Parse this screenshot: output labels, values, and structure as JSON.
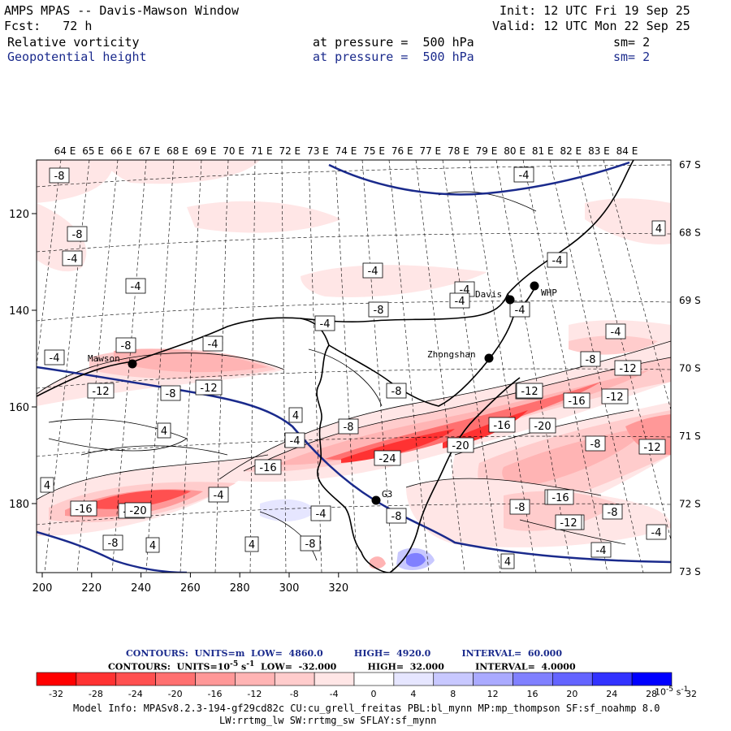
{
  "header": {
    "title": "AMPS MPAS -- Davis-Mawson Window",
    "init": "Init: 12 UTC Fri 19 Sep 25",
    "fcst": "Fcst:   72 h",
    "valid": "Valid: 12 UTC Mon 22 Sep 25",
    "field1": {
      "name": "Relative vorticity",
      "level": "at pressure =  500 hPa",
      "sm": "sm= 2"
    },
    "field2": {
      "name": "Geopotential height",
      "level": "at pressure =  500 hPa",
      "sm": "sm= 2"
    }
  },
  "axes": {
    "top_lon_labels": [
      "64 E",
      "65 E",
      "66 E",
      "67 E",
      "68 E",
      "69 E",
      "70 E",
      "71 E",
      "72 E",
      "73 E",
      "74 E",
      "75 E",
      "76 E",
      "77 E",
      "78 E",
      "79 E",
      "80 E",
      "81 E",
      "82 E",
      "83 E",
      "84 E"
    ],
    "right_lat_labels": [
      "67 S",
      "68 S",
      "69 S",
      "70 S",
      "71 S",
      "72 S",
      "73 S"
    ],
    "x_ticks": [
      "200",
      "220",
      "240",
      "260",
      "280",
      "300",
      "320"
    ],
    "y_ticks": [
      "120",
      "140",
      "160",
      "180"
    ]
  },
  "stations": [
    {
      "name": "Mawson"
    },
    {
      "name": "Davis"
    },
    {
      "name": "WHP"
    },
    {
      "name": "Zhongshan"
    },
    {
      "name": "G3"
    }
  ],
  "vorticity_labels": [
    "-8",
    "-8",
    "-4",
    "-4",
    "-4",
    "-8",
    "-4",
    "-4",
    "-4",
    "-4",
    "-8",
    "-4",
    "-8",
    "-4",
    "-4",
    "-4",
    "-12",
    "-8",
    "-12",
    "-8",
    "-12",
    "4",
    "-12",
    "-16",
    "-4",
    "-8",
    "-12",
    "-16",
    "-20",
    "-8",
    "4",
    "-4",
    "-16",
    "-20",
    "-24",
    "-8",
    "-12",
    "-16",
    "-20",
    "-12",
    "4",
    "-4",
    "-16",
    "-20",
    "-8",
    "-4",
    "-16",
    "-12",
    "-8",
    "4",
    "-8",
    "4",
    "4",
    "-4",
    "-4",
    "4",
    "-8",
    "-12"
  ],
  "legend": {
    "contours_height": "CONTOURS:  UNITS=m  LOW=  4860.0          HIGH=  4920.0          INTERVAL=  60.000",
    "contours_vort": "CONTOURS:  UNITS=10",
    "contours_vort_sup": "-5",
    "contours_vort_rest": " s",
    "contours_vort_sup2": "-1",
    "contours_vort_tail": "  LOW=  -32.000          HIGH=  32.000          INTERVAL=  4.0000",
    "colorbar_labels": [
      "-32",
      "-28",
      "-24",
      "-20",
      "-16",
      "-12",
      "-8",
      "-4",
      "0",
      "4",
      "8",
      "12",
      "16",
      "20",
      "24",
      "28",
      "32"
    ],
    "colorbar_colors": [
      "#ff0000",
      "#ff3232",
      "#ff5050",
      "#ff7070",
      "#ff9898",
      "#ffb4b4",
      "#ffcccc",
      "#ffe6e6",
      "#ffffff",
      "#ffffff",
      "#e6e6ff",
      "#c8c8ff",
      "#aaaaff",
      "#8080ff",
      "#6464ff",
      "#3232ff",
      "#0000ff"
    ],
    "units": "10",
    "units_sup": "-5",
    "units_s": " s",
    "units_sup2": "-1"
  },
  "footer": {
    "line1": "Model Info: MPASv8.2.3-194-gf29cd82c CU:cu_grell_freitas PBL:bl_mynn MP:mp_thompson SF:sf_noahmp 8.0",
    "line2": "LW:rrtmg_lw SW:rrtmg_sw SFLAY:sf_mynn"
  }
}
